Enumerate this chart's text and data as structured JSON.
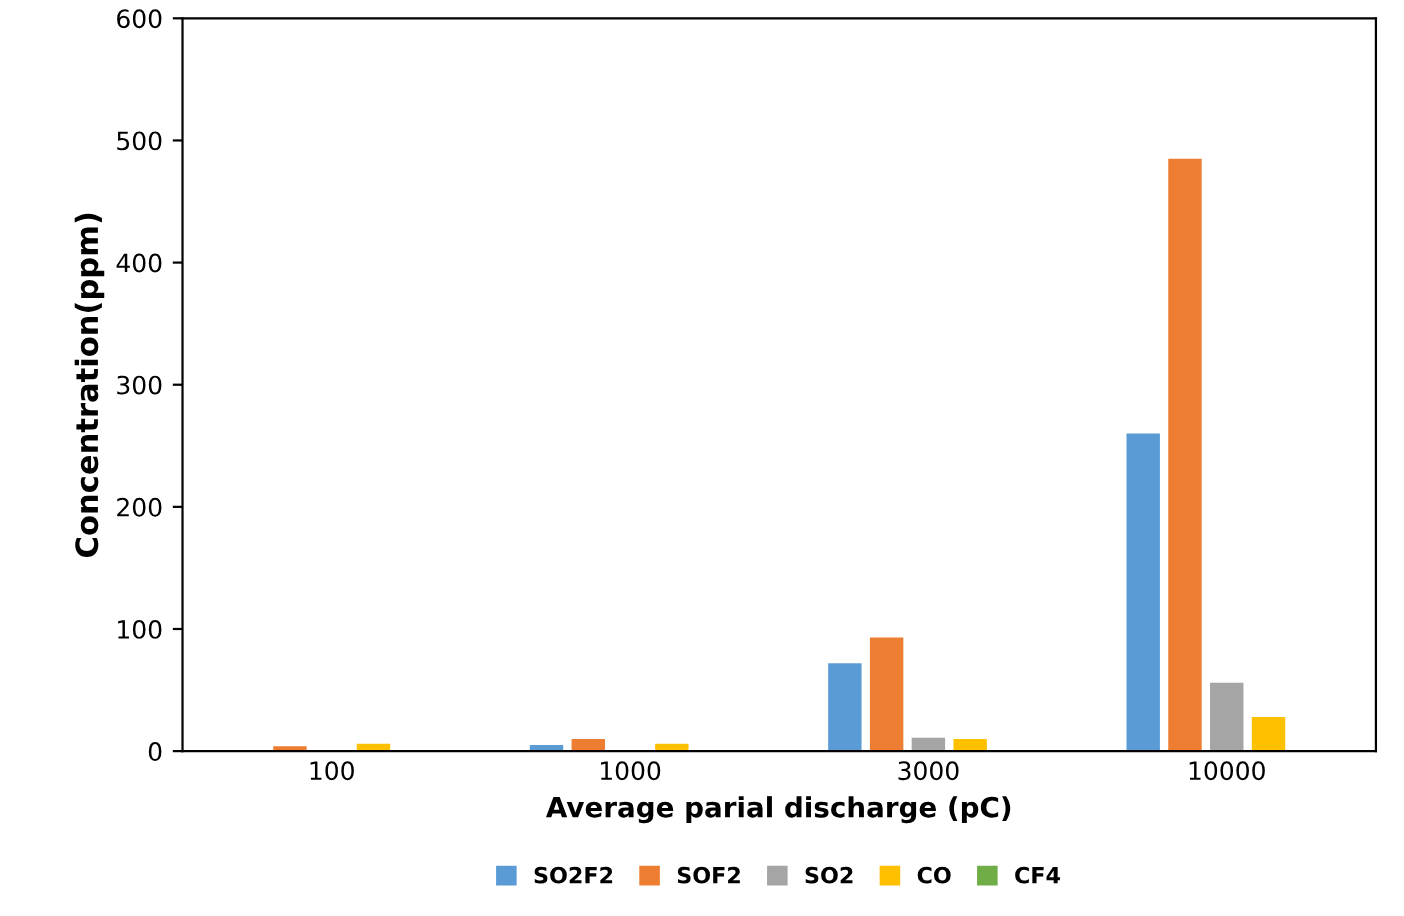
{
  "chart_data": {
    "type": "bar",
    "xlabel": "Average parial discharge (pC)",
    "ylabel": "Concentration(ppm)",
    "categories": [
      "100",
      "1000",
      "3000",
      "10000"
    ],
    "series": [
      {
        "name": "SO2F2",
        "color": "#5b9bd5",
        "values": [
          0,
          5,
          72,
          260
        ]
      },
      {
        "name": "SOF2",
        "color": "#ed7d31",
        "values": [
          4,
          10,
          93,
          485
        ]
      },
      {
        "name": "SO2",
        "color": "#a5a5a5",
        "values": [
          0,
          0,
          11,
          56
        ]
      },
      {
        "name": "CO",
        "color": "#ffc000",
        "values": [
          6,
          6,
          10,
          28
        ]
      },
      {
        "name": "CF4",
        "color": "#70ad47",
        "values": [
          0,
          0,
          0,
          0
        ]
      }
    ],
    "ylim": [
      0,
      600
    ],
    "yticks": [
      0,
      100,
      200,
      300,
      400,
      500,
      600
    ],
    "grid": false,
    "legend": "bottom"
  }
}
